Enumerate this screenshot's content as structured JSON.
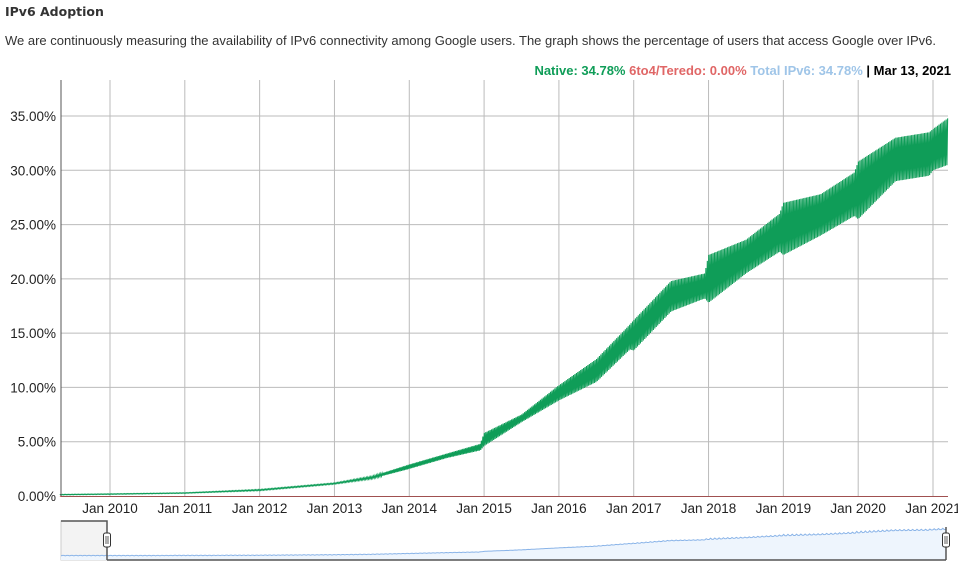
{
  "header": {
    "title": "IPv6 Adoption",
    "description": "We are continuously measuring the availability of IPv6 connectivity among Google users. The graph shows the percentage of users that access Google over IPv6."
  },
  "legend": {
    "native": "Native: 34.78%",
    "teredo": "6to4/Teredo: 0.00%",
    "total": "Total IPv6: 34.78%",
    "separator": "|",
    "date": "Mar 13, 2021",
    "colors": {
      "native": "#0f9d58",
      "teredo": "#e06666",
      "total": "#9fc5e8",
      "date": "#000000"
    }
  },
  "chart_data": {
    "type": "area",
    "title": "IPv6 Adoption",
    "xlabel": "",
    "ylabel": "",
    "ylim": [
      0,
      37
    ],
    "xlim": [
      2009.33,
      2021.2
    ],
    "y_ticks": [
      "0.00%",
      "5.00%",
      "10.00%",
      "15.00%",
      "20.00%",
      "25.00%",
      "30.00%",
      "35.00%"
    ],
    "y_tick_values": [
      0,
      5,
      10,
      15,
      20,
      25,
      30,
      35
    ],
    "x_ticks": [
      "Jan 2010",
      "Jan 2011",
      "Jan 2012",
      "Jan 2013",
      "Jan 2014",
      "Jan 2015",
      "Jan 2016",
      "Jan 2017",
      "Jan 2018",
      "Jan 2019",
      "Jan 2020",
      "Jan 2021"
    ],
    "x_tick_values": [
      2010,
      2011,
      2012,
      2013,
      2014,
      2015,
      2016,
      2017,
      2018,
      2019,
      2020,
      2021
    ],
    "grid": true,
    "series": [
      {
        "name": "Native",
        "color": "#0f9d58",
        "x": [
          2009.33,
          2010.0,
          2011.0,
          2012.0,
          2012.5,
          2013.0,
          2013.5,
          2014.0,
          2014.5,
          2014.95,
          2015.0,
          2015.5,
          2016.0,
          2016.5,
          2016.95,
          2017.0,
          2017.5,
          2017.95,
          2018.0,
          2018.5,
          2018.95,
          2019.0,
          2019.5,
          2019.95,
          2020.0,
          2020.5,
          2020.95,
          2021.0,
          2021.2
        ],
        "high": [
          0.15,
          0.2,
          0.3,
          0.6,
          0.9,
          1.2,
          1.8,
          2.9,
          3.9,
          4.8,
          5.8,
          7.5,
          10.2,
          12.6,
          15.8,
          16.2,
          19.8,
          20.5,
          22.2,
          23.6,
          26.0,
          27.0,
          27.8,
          29.8,
          30.8,
          33.0,
          33.5,
          33.8,
          34.8
        ],
        "low": [
          0.1,
          0.15,
          0.25,
          0.5,
          0.8,
          1.1,
          1.6,
          2.5,
          3.5,
          4.2,
          4.6,
          6.8,
          8.8,
          10.5,
          13.5,
          13.4,
          17.0,
          18.2,
          17.8,
          20.5,
          22.5,
          22.2,
          24.0,
          25.8,
          25.5,
          29.0,
          29.5,
          30.0,
          30.5
        ]
      },
      {
        "name": "6to4/Teredo",
        "color": "#e06666",
        "x": [
          2009.33,
          2021.2
        ],
        "values": [
          0.0,
          0.0
        ]
      }
    ],
    "navigator": {
      "series_name": "Total IPv6",
      "selected_range": [
        "Jan 2010",
        "Mar 13, 2021"
      ]
    }
  }
}
